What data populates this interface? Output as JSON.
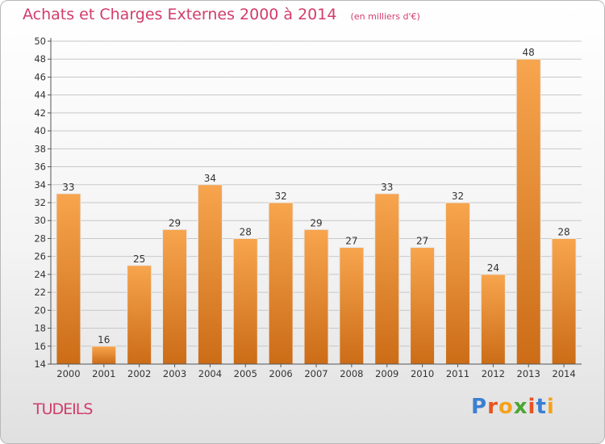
{
  "header": {
    "title": "Achats et Charges Externes 2000 à 2014",
    "subtitle": "(en milliers d'€)"
  },
  "footer": {
    "place": "TUDEILS",
    "logo_letters": [
      "P",
      "r",
      "o",
      "x",
      "i",
      "t",
      "i"
    ],
    "logo_colors": [
      "#3b7fd0",
      "#e9531f",
      "#f5a21b",
      "#4aa632",
      "#e9531f",
      "#3b7fd0",
      "#f5a21b"
    ]
  },
  "colors": {
    "bar_top": "#f7a54e",
    "bar_bottom": "#cc6c17",
    "grid": "#c8c8c8",
    "axis": "#555555",
    "text": "#333333"
  },
  "chart_data": {
    "type": "bar",
    "title": "Achats et Charges Externes 2000 à 2014",
    "subtitle": "(en milliers d'€)",
    "categories": [
      "2000",
      "2001",
      "2002",
      "2003",
      "2004",
      "2005",
      "2006",
      "2007",
      "2008",
      "2009",
      "2010",
      "2011",
      "2012",
      "2013",
      "2014"
    ],
    "values": [
      33,
      16,
      25,
      29,
      34,
      28,
      32,
      29,
      27,
      33,
      27,
      32,
      24,
      48,
      28
    ],
    "ylim": [
      14,
      50
    ],
    "yticks": [
      14,
      16,
      18,
      20,
      22,
      24,
      26,
      28,
      30,
      32,
      34,
      36,
      38,
      40,
      42,
      44,
      46,
      48,
      50
    ],
    "grid": true,
    "data_labels": true
  }
}
